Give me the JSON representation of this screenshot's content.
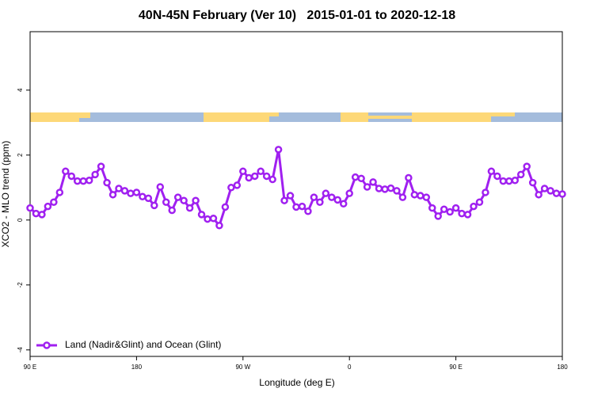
{
  "chart_data": {
    "type": "line",
    "title": "40N-45N February (Ver 10)   2015-01-01 to 2020-12-18",
    "xlabel": "Longitude (deg E)",
    "ylabel": "XCO2 - MLO trend (ppm)",
    "xlim": [
      90,
      540
    ],
    "ylim": [
      -4.2,
      5.8
    ],
    "xticks": [
      {
        "value": 90,
        "label": "90 E"
      },
      180,
      {
        "value": 270,
        "label": "90 W"
      },
      {
        "value": 360,
        "label": "0"
      },
      {
        "value": 450,
        "label": "90 E"
      },
      {
        "value": 540,
        "label": "180"
      }
    ],
    "yticks": [
      -4,
      -2,
      0,
      2,
      4
    ],
    "legend": "bottom-left",
    "x": [
      90,
      95,
      100,
      105,
      110,
      115,
      120,
      125,
      130,
      135,
      140,
      145,
      150,
      155,
      160,
      165,
      170,
      175,
      180,
      185,
      190,
      195,
      200,
      205,
      210,
      215,
      220,
      225,
      230,
      235,
      240,
      245,
      250,
      255,
      260,
      265,
      270,
      275,
      280,
      285,
      290,
      295,
      300,
      305,
      310,
      315,
      320,
      325,
      330,
      335,
      340,
      345,
      350,
      355,
      360,
      365,
      370,
      375,
      380,
      385,
      390,
      395,
      400,
      405,
      410,
      415,
      420,
      425,
      430,
      435,
      440,
      445,
      450,
      455,
      460,
      465,
      470,
      475,
      480,
      485,
      490,
      495,
      500,
      505,
      510,
      515,
      520,
      525,
      530,
      535,
      540
    ],
    "series": [
      {
        "name": "Land (Nadir&Glint) and Ocean (Glint)",
        "color": "#a020f0",
        "values": [
          0.37,
          0.2,
          0.17,
          0.42,
          0.55,
          0.85,
          1.5,
          1.35,
          1.2,
          1.2,
          1.22,
          1.4,
          1.65,
          1.15,
          0.78,
          0.97,
          0.9,
          0.82,
          0.85,
          0.72,
          0.67,
          0.45,
          1.02,
          0.55,
          0.3,
          0.7,
          0.6,
          0.37,
          0.6,
          0.17,
          0.03,
          0.05,
          -0.17,
          0.4,
          1.0,
          1.07,
          1.5,
          1.3,
          1.35,
          1.5,
          1.35,
          1.25,
          2.17,
          0.6,
          0.75,
          0.4,
          0.42,
          0.27,
          0.7,
          0.55,
          0.82,
          0.7,
          0.62,
          0.5,
          0.82,
          1.32,
          1.28,
          1.02,
          1.17,
          0.97,
          0.95,
          0.98,
          0.9,
          0.7,
          1.3,
          0.78,
          0.75,
          0.7,
          0.37,
          0.12,
          0.33,
          0.25,
          0.37,
          0.2,
          0.17,
          0.42,
          0.55,
          0.85,
          1.5,
          1.35,
          1.2,
          1.2,
          1.22,
          1.4,
          1.65,
          1.15,
          0.78,
          0.97,
          0.9,
          0.82,
          0.8
        ]
      }
    ]
  }
}
